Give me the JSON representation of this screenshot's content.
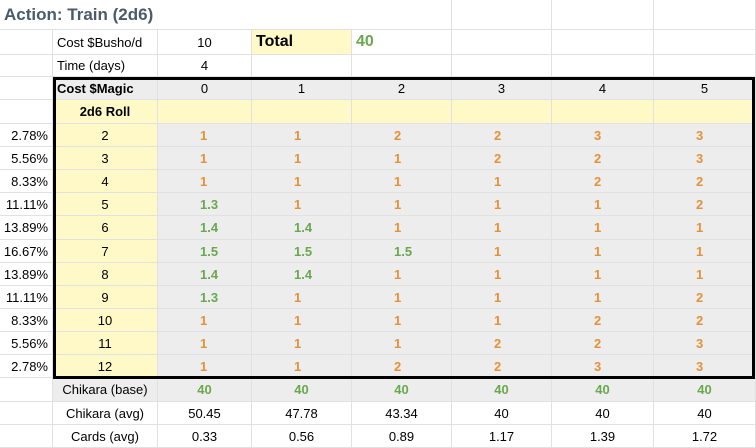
{
  "sheet": {
    "title": "Action: Train (2d6)",
    "cost_busho_label": "Cost $Busho/d",
    "cost_busho_value": "10",
    "total_label": "Total",
    "total_value": "40",
    "time_label": "Time (days)",
    "time_value": "4",
    "cost_magic_label": "Cost $Magic",
    "magic_levels": [
      "0",
      "1",
      "2",
      "3",
      "4",
      "5"
    ],
    "roll_label": "2d6 Roll",
    "rows": [
      {
        "prob": "2.78%",
        "roll": "2",
        "values": [
          "1",
          "1",
          "2",
          "2",
          "3",
          "3"
        ],
        "colors": [
          "orange",
          "orange",
          "orange",
          "orange",
          "orange",
          "orange"
        ]
      },
      {
        "prob": "5.56%",
        "roll": "3",
        "values": [
          "1",
          "1",
          "1",
          "2",
          "2",
          "3"
        ],
        "colors": [
          "orange",
          "orange",
          "orange",
          "orange",
          "orange",
          "orange"
        ]
      },
      {
        "prob": "8.33%",
        "roll": "4",
        "values": [
          "1",
          "1",
          "1",
          "1",
          "2",
          "2"
        ],
        "colors": [
          "orange",
          "orange",
          "orange",
          "orange",
          "orange",
          "orange"
        ]
      },
      {
        "prob": "11.11%",
        "roll": "5",
        "values": [
          "1.3",
          "1",
          "1",
          "1",
          "1",
          "2"
        ],
        "colors": [
          "green",
          "orange",
          "orange",
          "orange",
          "orange",
          "orange"
        ]
      },
      {
        "prob": "13.89%",
        "roll": "6",
        "values": [
          "1.4",
          "1.4",
          "1",
          "1",
          "1",
          "1"
        ],
        "colors": [
          "green",
          "green",
          "orange",
          "orange",
          "orange",
          "orange"
        ]
      },
      {
        "prob": "16.67%",
        "roll": "7",
        "values": [
          "1.5",
          "1.5",
          "1.5",
          "1",
          "1",
          "1"
        ],
        "colors": [
          "green",
          "green",
          "green",
          "orange",
          "orange",
          "orange"
        ]
      },
      {
        "prob": "13.89%",
        "roll": "8",
        "values": [
          "1.4",
          "1.4",
          "1",
          "1",
          "1",
          "1"
        ],
        "colors": [
          "green",
          "green",
          "orange",
          "orange",
          "orange",
          "orange"
        ]
      },
      {
        "prob": "11.11%",
        "roll": "9",
        "values": [
          "1.3",
          "1",
          "1",
          "1",
          "1",
          "2"
        ],
        "colors": [
          "green",
          "orange",
          "orange",
          "orange",
          "orange",
          "orange"
        ]
      },
      {
        "prob": "8.33%",
        "roll": "10",
        "values": [
          "1",
          "1",
          "1",
          "1",
          "2",
          "2"
        ],
        "colors": [
          "orange",
          "orange",
          "orange",
          "orange",
          "orange",
          "orange"
        ]
      },
      {
        "prob": "5.56%",
        "roll": "11",
        "values": [
          "1",
          "1",
          "1",
          "2",
          "2",
          "3"
        ],
        "colors": [
          "orange",
          "orange",
          "orange",
          "orange",
          "orange",
          "orange"
        ]
      },
      {
        "prob": "2.78%",
        "roll": "12",
        "values": [
          "1",
          "1",
          "2",
          "2",
          "3",
          "3"
        ],
        "colors": [
          "orange",
          "orange",
          "orange",
          "orange",
          "orange",
          "orange"
        ]
      }
    ],
    "chikara_base_label": "Chikara (base)",
    "chikara_base_values": [
      "40",
      "40",
      "40",
      "40",
      "40",
      "40"
    ],
    "chikara_avg_label": "Chikara (avg)",
    "chikara_avg_values": [
      "50.45",
      "47.78",
      "43.34",
      "40",
      "40",
      "40"
    ],
    "cards_avg_label": "Cards (avg)",
    "cards_avg_values": [
      "0.33",
      "0.56",
      "0.89",
      "1.17",
      "1.39",
      "1.72"
    ]
  },
  "colors": {
    "green": "#6aa84f",
    "orange": "#e69138",
    "yellow_fill": "#fff9c8",
    "grey_fill": "#ededed",
    "title_text": "#4a5b6b"
  }
}
